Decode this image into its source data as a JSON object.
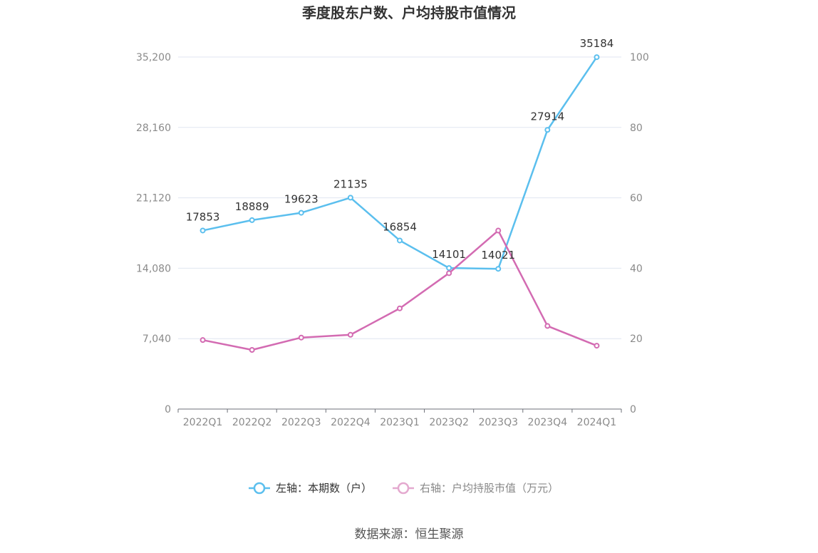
{
  "chart_data": {
    "type": "line",
    "title": "季度股东户数、户均持股市值情况",
    "categories": [
      "2022Q1",
      "2022Q2",
      "2022Q3",
      "2022Q4",
      "2023Q1",
      "2023Q2",
      "2023Q3",
      "2023Q4",
      "2024Q1"
    ],
    "series": [
      {
        "name": "左轴：本期数（户）",
        "axis": "left",
        "color": "#5bbfee",
        "values": [
          17853,
          18889,
          19623,
          21135,
          16854,
          14101,
          14021,
          27914,
          35184
        ],
        "data_labels": [
          "17853",
          "18889",
          "19623",
          "21135",
          "16854",
          "14101",
          "14021",
          "27914",
          "35184"
        ]
      },
      {
        "name": "右轴：户均持股市值（万元）",
        "axis": "right",
        "color": "#d36bb2",
        "values": [
          19.6,
          16.8,
          20.3,
          21.1,
          28.6,
          38.6,
          50.7,
          23.6,
          18.0
        ]
      }
    ],
    "y_left": {
      "min": 0,
      "max": 35200,
      "ticks": [
        "0",
        "7,040",
        "14,080",
        "21,120",
        "28,160",
        "35,200"
      ]
    },
    "y_right": {
      "min": 0,
      "max": 100,
      "ticks": [
        "0",
        "20",
        "40",
        "60",
        "80",
        "100"
      ]
    },
    "grid": true,
    "legend_position": "bottom"
  },
  "source": "数据来源：恒生聚源"
}
